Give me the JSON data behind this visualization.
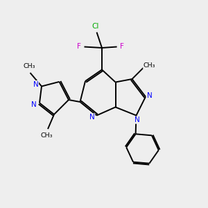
{
  "background_color": "#eeeeee",
  "bond_color": "#000000",
  "N_color": "#0000ff",
  "Cl_color": "#00aa00",
  "F_color": "#cc00cc",
  "C_color": "#000000",
  "figsize": [
    3.0,
    3.0
  ],
  "dpi": 100,
  "xlim": [
    0,
    10
  ],
  "ylim": [
    0,
    10
  ]
}
